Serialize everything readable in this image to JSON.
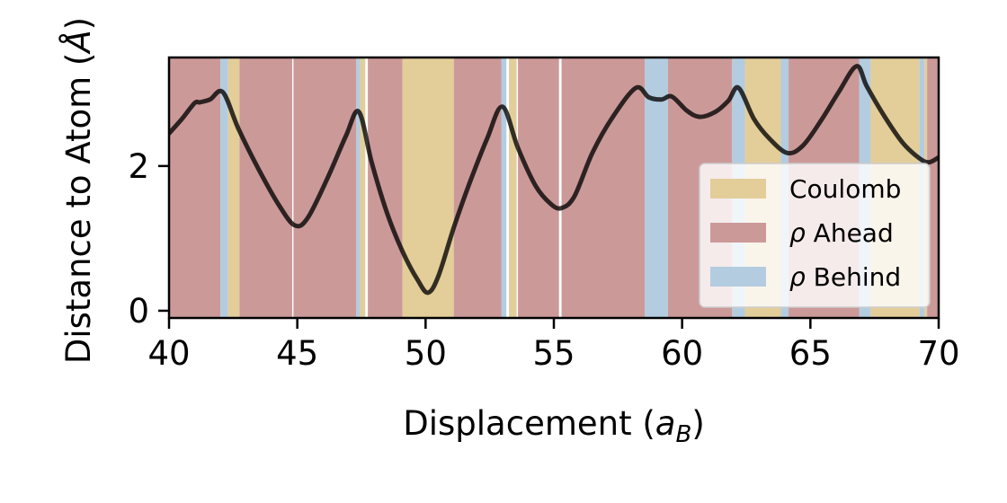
{
  "chart_data": {
    "type": "line",
    "xlabel": "Displacement (",
    "xlabel_var": "a",
    "xlabel_sub": "B",
    "xlabel_end": ")",
    "ylabel": "Distance to Atom (",
    "ylabel_unit": "Å",
    "ylabel_end": ")",
    "xlim": [
      40,
      70
    ],
    "ylim": [
      -0.1,
      3.5
    ],
    "xticks": [
      40,
      45,
      50,
      55,
      60,
      65,
      70
    ],
    "yticks": [
      0,
      2
    ],
    "grid": false,
    "legend_position": "right",
    "line_color": "#000000",
    "series": [
      {
        "x": [
          40.0,
          40.5,
          41.0,
          41.2,
          41.6,
          42.1,
          42.7,
          43.5,
          44.3,
          44.9,
          45.4,
          46.2,
          46.9,
          47.4,
          47.9,
          48.5,
          49.1,
          49.7,
          50.1,
          50.5,
          51.1,
          51.7,
          52.4,
          53.0,
          53.6,
          54.3,
          54.9,
          55.3,
          55.8,
          56.5,
          57.3,
          58.2,
          58.7,
          59.2,
          59.6,
          60.2,
          60.7,
          61.3,
          61.8,
          62.2,
          62.8,
          63.4,
          64.1,
          64.7,
          65.4,
          66.1,
          66.8,
          67.2,
          67.9,
          68.6,
          69.2,
          69.6,
          70.0
        ],
        "y": [
          2.45,
          2.65,
          2.87,
          2.88,
          2.92,
          3.02,
          2.52,
          1.95,
          1.45,
          1.18,
          1.28,
          1.85,
          2.42,
          2.75,
          2.05,
          1.35,
          0.82,
          0.42,
          0.25,
          0.48,
          1.15,
          1.75,
          2.38,
          2.82,
          2.25,
          1.72,
          1.47,
          1.42,
          1.58,
          2.18,
          2.68,
          3.08,
          2.95,
          2.92,
          2.96,
          2.76,
          2.68,
          2.75,
          2.9,
          3.08,
          2.65,
          2.38,
          2.18,
          2.28,
          2.62,
          3.02,
          3.38,
          3.1,
          2.68,
          2.32,
          2.12,
          2.05,
          2.12
        ]
      }
    ],
    "regions": [
      {
        "start": 40.0,
        "end": 42.0,
        "category": "rho_ahead"
      },
      {
        "start": 42.0,
        "end": 42.3,
        "category": "rho_behind"
      },
      {
        "start": 42.3,
        "end": 42.75,
        "category": "coulomb"
      },
      {
        "start": 42.75,
        "end": 44.8,
        "category": "rho_ahead"
      },
      {
        "start": 44.85,
        "end": 47.3,
        "category": "rho_ahead"
      },
      {
        "start": 47.3,
        "end": 47.45,
        "category": "rho_behind"
      },
      {
        "start": 47.45,
        "end": 47.65,
        "category": "coulomb"
      },
      {
        "start": 47.75,
        "end": 49.1,
        "category": "rho_ahead"
      },
      {
        "start": 49.1,
        "end": 51.1,
        "category": "coulomb"
      },
      {
        "start": 51.1,
        "end": 52.95,
        "category": "rho_ahead"
      },
      {
        "start": 52.95,
        "end": 53.15,
        "category": "rho_behind"
      },
      {
        "start": 53.25,
        "end": 53.55,
        "category": "coulomb"
      },
      {
        "start": 53.6,
        "end": 55.2,
        "category": "rho_ahead"
      },
      {
        "start": 55.3,
        "end": 58.55,
        "category": "rho_ahead"
      },
      {
        "start": 58.55,
        "end": 59.45,
        "category": "rho_behind"
      },
      {
        "start": 59.45,
        "end": 61.95,
        "category": "rho_ahead"
      },
      {
        "start": 61.95,
        "end": 62.45,
        "category": "rho_behind"
      },
      {
        "start": 62.45,
        "end": 63.85,
        "category": "coulomb"
      },
      {
        "start": 63.85,
        "end": 64.15,
        "category": "rho_behind"
      },
      {
        "start": 64.15,
        "end": 66.9,
        "category": "rho_ahead"
      },
      {
        "start": 66.9,
        "end": 67.35,
        "category": "rho_behind"
      },
      {
        "start": 67.35,
        "end": 69.25,
        "category": "coulomb"
      },
      {
        "start": 69.25,
        "end": 69.45,
        "category": "rho_behind"
      },
      {
        "start": 69.45,
        "end": 69.55,
        "category": "coulomb"
      },
      {
        "start": 69.55,
        "end": 70.0,
        "category": "rho_ahead"
      }
    ],
    "legend": [
      {
        "key": "coulomb",
        "label": "Coulomb",
        "color": "#e3cd99",
        "prefix": ""
      },
      {
        "key": "rho_ahead",
        "label": "Ahead",
        "color": "#cc9999",
        "prefix": "ρ"
      },
      {
        "key": "rho_behind",
        "label": "Behind",
        "color": "#b3cce0",
        "prefix": "ρ"
      }
    ]
  }
}
